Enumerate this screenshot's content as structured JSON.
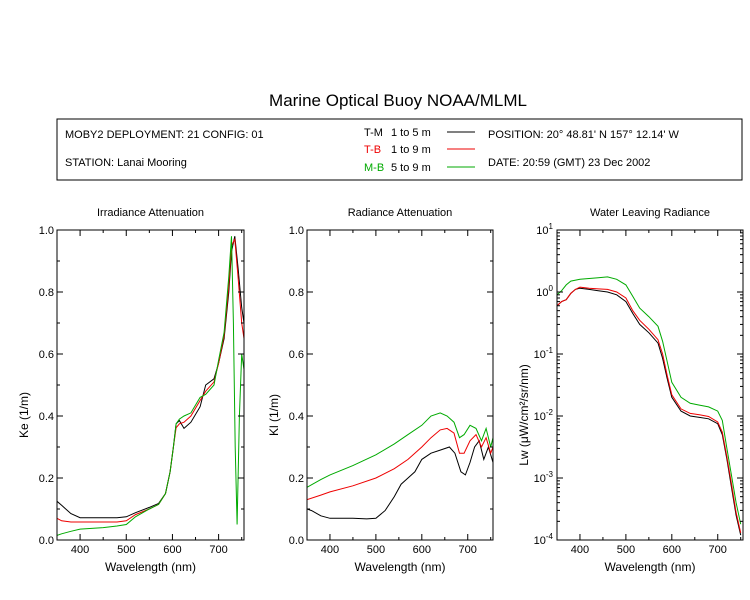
{
  "title": "Marine Optical Buoy NOAA/MLML",
  "info": {
    "deployment": "MOBY2 DEPLOYMENT: 21 CONFIG: 01",
    "station": "STATION: Lanai Mooring",
    "position": "POSITION: 20° 48.81' N   157° 12.14' W",
    "date": "DATE: 20:59 (GMT) 23 Dec 2002"
  },
  "legend": [
    {
      "name": "T-M",
      "range": "1 to 5  m",
      "color": "#000000"
    },
    {
      "name": "T-B",
      "range": "1 to 9  m",
      "color": "#ee0000"
    },
    {
      "name": "M-B",
      "range": "5 to 9  m",
      "color": "#00aa00"
    }
  ],
  "chart_data": [
    {
      "type": "line",
      "title": "Irradiance Attenuation",
      "xlabel": "Wavelength (nm)",
      "ylabel": "Ke  (1/m)",
      "xlim": [
        350,
        755
      ],
      "ylim": [
        0,
        1.0
      ],
      "xticks": [
        400,
        500,
        600,
        700
      ],
      "yticks": [
        "0.0",
        "0.2",
        "0.4",
        "0.6",
        "0.8",
        "1.0"
      ],
      "series": [
        {
          "name": "T-M",
          "color": "#000000",
          "points": [
            [
              350,
              0.125
            ],
            [
              360,
              0.112
            ],
            [
              380,
              0.085
            ],
            [
              400,
              0.072
            ],
            [
              450,
              0.072
            ],
            [
              480,
              0.072
            ],
            [
              500,
              0.075
            ],
            [
              520,
              0.088
            ],
            [
              550,
              0.105
            ],
            [
              570,
              0.118
            ],
            [
              585,
              0.15
            ],
            [
              595,
              0.22
            ],
            [
              602,
              0.3
            ],
            [
              608,
              0.375
            ],
            [
              615,
              0.385
            ],
            [
              625,
              0.36
            ],
            [
              640,
              0.38
            ],
            [
              660,
              0.43
            ],
            [
              672,
              0.5
            ],
            [
              690,
              0.52
            ],
            [
              700,
              0.57
            ],
            [
              712,
              0.65
            ],
            [
              722,
              0.8
            ],
            [
              728,
              0.93
            ],
            [
              735,
              0.98
            ],
            [
              742,
              0.88
            ],
            [
              750,
              0.75
            ],
            [
              755,
              0.7
            ]
          ]
        },
        {
          "name": "T-B",
          "color": "#ee0000",
          "points": [
            [
              350,
              0.07
            ],
            [
              360,
              0.062
            ],
            [
              380,
              0.058
            ],
            [
              400,
              0.058
            ],
            [
              450,
              0.058
            ],
            [
              480,
              0.058
            ],
            [
              500,
              0.062
            ],
            [
              520,
              0.082
            ],
            [
              550,
              0.1
            ],
            [
              570,
              0.115
            ],
            [
              585,
              0.15
            ],
            [
              595,
              0.22
            ],
            [
              602,
              0.3
            ],
            [
              608,
              0.362
            ],
            [
              615,
              0.375
            ],
            [
              625,
              0.38
            ],
            [
              640,
              0.4
            ],
            [
              660,
              0.45
            ],
            [
              672,
              0.48
            ],
            [
              690,
              0.51
            ],
            [
              700,
              0.57
            ],
            [
              712,
              0.66
            ],
            [
              722,
              0.82
            ],
            [
              728,
              0.95
            ],
            [
              735,
              0.97
            ],
            [
              742,
              0.85
            ],
            [
              750,
              0.7
            ],
            [
              755,
              0.65
            ]
          ]
        },
        {
          "name": "M-B",
          "color": "#00aa00",
          "points": [
            [
              350,
              0.015
            ],
            [
              360,
              0.02
            ],
            [
              380,
              0.028
            ],
            [
              400,
              0.035
            ],
            [
              450,
              0.04
            ],
            [
              480,
              0.045
            ],
            [
              500,
              0.05
            ],
            [
              520,
              0.075
            ],
            [
              550,
              0.1
            ],
            [
              570,
              0.115
            ],
            [
              585,
              0.15
            ],
            [
              595,
              0.22
            ],
            [
              602,
              0.3
            ],
            [
              608,
              0.375
            ],
            [
              615,
              0.39
            ],
            [
              625,
              0.4
            ],
            [
              640,
              0.41
            ],
            [
              660,
              0.46
            ],
            [
              672,
              0.47
            ],
            [
              690,
              0.5
            ],
            [
              700,
              0.58
            ],
            [
              712,
              0.67
            ],
            [
              722,
              0.85
            ],
            [
              728,
              0.98
            ],
            [
              732,
              0.7
            ],
            [
              736,
              0.3
            ],
            [
              740,
              0.05
            ],
            [
              745,
              0.4
            ],
            [
              750,
              0.6
            ],
            [
              755,
              0.55
            ]
          ]
        }
      ]
    },
    {
      "type": "line",
      "title": "Radiance Attenuation",
      "xlabel": "Wavelength (nm)",
      "ylabel": "Kl  (1/m)",
      "xlim": [
        350,
        755
      ],
      "ylim": [
        0,
        1.0
      ],
      "xticks": [
        400,
        500,
        600,
        700
      ],
      "yticks": [
        "0.0",
        "0.2",
        "0.4",
        "0.6",
        "0.8",
        "1.0"
      ],
      "series": [
        {
          "name": "T-M",
          "color": "#000000",
          "points": [
            [
              350,
              0.1
            ],
            [
              360,
              0.095
            ],
            [
              380,
              0.078
            ],
            [
              400,
              0.07
            ],
            [
              450,
              0.07
            ],
            [
              480,
              0.068
            ],
            [
              500,
              0.07
            ],
            [
              520,
              0.095
            ],
            [
              540,
              0.14
            ],
            [
              555,
              0.18
            ],
            [
              570,
              0.2
            ],
            [
              585,
              0.22
            ],
            [
              600,
              0.26
            ],
            [
              620,
              0.28
            ],
            [
              640,
              0.29
            ],
            [
              660,
              0.3
            ],
            [
              672,
              0.28
            ],
            [
              685,
              0.22
            ],
            [
              695,
              0.21
            ],
            [
              705,
              0.25
            ],
            [
              715,
              0.3
            ],
            [
              725,
              0.32
            ],
            [
              735,
              0.26
            ],
            [
              745,
              0.3
            ],
            [
              755,
              0.25
            ]
          ]
        },
        {
          "name": "T-B",
          "color": "#ee0000",
          "points": [
            [
              350,
              0.13
            ],
            [
              380,
              0.145
            ],
            [
              400,
              0.155
            ],
            [
              450,
              0.175
            ],
            [
              500,
              0.2
            ],
            [
              540,
              0.23
            ],
            [
              570,
              0.26
            ],
            [
              600,
              0.3
            ],
            [
              620,
              0.33
            ],
            [
              640,
              0.355
            ],
            [
              655,
              0.36
            ],
            [
              670,
              0.345
            ],
            [
              682,
              0.28
            ],
            [
              692,
              0.28
            ],
            [
              705,
              0.32
            ],
            [
              718,
              0.34
            ],
            [
              730,
              0.3
            ],
            [
              740,
              0.33
            ],
            [
              750,
              0.28
            ],
            [
              755,
              0.3
            ]
          ]
        },
        {
          "name": "M-B",
          "color": "#00aa00",
          "points": [
            [
              350,
              0.17
            ],
            [
              380,
              0.195
            ],
            [
              400,
              0.21
            ],
            [
              450,
              0.24
            ],
            [
              500,
              0.275
            ],
            [
              540,
              0.31
            ],
            [
              570,
              0.34
            ],
            [
              600,
              0.37
            ],
            [
              620,
              0.4
            ],
            [
              640,
              0.41
            ],
            [
              655,
              0.4
            ],
            [
              670,
              0.38
            ],
            [
              682,
              0.33
            ],
            [
              692,
              0.34
            ],
            [
              705,
              0.37
            ],
            [
              718,
              0.36
            ],
            [
              730,
              0.32
            ],
            [
              740,
              0.36
            ],
            [
              750,
              0.3
            ],
            [
              755,
              0.33
            ]
          ]
        }
      ]
    },
    {
      "type": "line",
      "title": "Water Leaving Radiance",
      "xlabel": "Wavelength (nm)",
      "ylabel": "Lw  (μW/cm²/sr/nm)",
      "xlim": [
        350,
        755
      ],
      "ylim": [
        0.0001,
        10
      ],
      "yscale": "log",
      "xticks": [
        400,
        500,
        600,
        700
      ],
      "yticks": [
        1,
        0,
        -1,
        -2,
        -3,
        -4
      ],
      "series": [
        {
          "name": "T-M",
          "color": "#000000",
          "points": [
            [
              350,
              0.6
            ],
            [
              360,
              0.7
            ],
            [
              370,
              0.75
            ],
            [
              380,
              0.95
            ],
            [
              390,
              1.1
            ],
            [
              400,
              1.15
            ],
            [
              420,
              1.1
            ],
            [
              440,
              1.05
            ],
            [
              460,
              1.0
            ],
            [
              480,
              0.9
            ],
            [
              500,
              0.7
            ],
            [
              515,
              0.45
            ],
            [
              530,
              0.3
            ],
            [
              550,
              0.22
            ],
            [
              570,
              0.15
            ],
            [
              580,
              0.085
            ],
            [
              590,
              0.04
            ],
            [
              600,
              0.02
            ],
            [
              620,
              0.012
            ],
            [
              640,
              0.01
            ],
            [
              660,
              0.0095
            ],
            [
              680,
              0.009
            ],
            [
              700,
              0.0075
            ],
            [
              710,
              0.005
            ],
            [
              720,
              0.002
            ],
            [
              730,
              0.0007
            ],
            [
              740,
              0.00025
            ],
            [
              750,
              0.00012
            ]
          ]
        },
        {
          "name": "T-B",
          "color": "#ee0000",
          "points": [
            [
              350,
              0.6
            ],
            [
              360,
              0.7
            ],
            [
              370,
              0.75
            ],
            [
              380,
              0.95
            ],
            [
              390,
              1.1
            ],
            [
              400,
              1.2
            ],
            [
              420,
              1.15
            ],
            [
              440,
              1.12
            ],
            [
              460,
              1.1
            ],
            [
              480,
              1.0
            ],
            [
              500,
              0.8
            ],
            [
              515,
              0.5
            ],
            [
              530,
              0.35
            ],
            [
              550,
              0.25
            ],
            [
              570,
              0.17
            ],
            [
              580,
              0.1
            ],
            [
              590,
              0.045
            ],
            [
              600,
              0.022
            ],
            [
              620,
              0.013
            ],
            [
              640,
              0.011
            ],
            [
              660,
              0.0105
            ],
            [
              680,
              0.0098
            ],
            [
              700,
              0.008
            ],
            [
              710,
              0.0055
            ],
            [
              720,
              0.0022
            ],
            [
              730,
              0.0008
            ],
            [
              740,
              0.00028
            ],
            [
              750,
              0.00013
            ]
          ]
        },
        {
          "name": "M-B",
          "color": "#00aa00",
          "points": [
            [
              350,
              0.9
            ],
            [
              360,
              1.05
            ],
            [
              370,
              1.3
            ],
            [
              380,
              1.5
            ],
            [
              400,
              1.6
            ],
            [
              420,
              1.65
            ],
            [
              440,
              1.7
            ],
            [
              460,
              1.75
            ],
            [
              480,
              1.6
            ],
            [
              500,
              1.3
            ],
            [
              515,
              0.85
            ],
            [
              530,
              0.55
            ],
            [
              550,
              0.4
            ],
            [
              570,
              0.28
            ],
            [
              580,
              0.16
            ],
            [
              590,
              0.075
            ],
            [
              600,
              0.035
            ],
            [
              620,
              0.02
            ],
            [
              640,
              0.016
            ],
            [
              660,
              0.015
            ],
            [
              680,
              0.014
            ],
            [
              700,
              0.012
            ],
            [
              710,
              0.0085
            ],
            [
              720,
              0.003
            ],
            [
              730,
              0.0011
            ],
            [
              740,
              0.0004
            ],
            [
              750,
              0.00018
            ]
          ]
        }
      ]
    }
  ]
}
